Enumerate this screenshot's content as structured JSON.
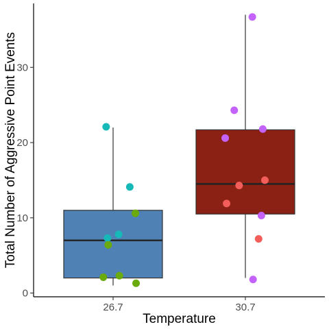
{
  "chart_data": {
    "type": "boxplot",
    "xlabel": "Temperature",
    "ylabel": "Total Number of Aggressive Point Events",
    "ylim": [
      -0.5,
      38.5
    ],
    "yticks": [
      0,
      10,
      20,
      30
    ],
    "categories": [
      "26.7",
      "30.7"
    ],
    "grid": false,
    "legend": "none",
    "boxes": [
      {
        "category": "26.7",
        "min": 1,
        "q1": 2,
        "median": 7,
        "q3": 11,
        "max": 22,
        "fill": "#4f81b4"
      },
      {
        "category": "30.7",
        "min": 2,
        "q1": 10.5,
        "median": 14.5,
        "q3": 21.7,
        "max": 37,
        "fill": "#8b2014"
      }
    ],
    "points": [
      {
        "category": "26.7",
        "offset": -0.1,
        "y": 22.1,
        "color": "#16b8b8"
      },
      {
        "category": "26.7",
        "offset": 0.24,
        "y": 14.1,
        "color": "#16b8b8"
      },
      {
        "category": "26.7",
        "offset": 0.08,
        "y": 7.8,
        "color": "#16b8b8"
      },
      {
        "category": "26.7",
        "offset": -0.08,
        "y": 7.3,
        "color": "#16b8b8"
      },
      {
        "category": "26.7",
        "offset": 0.32,
        "y": 10.6,
        "color": "#6aaa0b"
      },
      {
        "category": "26.7",
        "offset": -0.07,
        "y": 6.4,
        "color": "#6aaa0b"
      },
      {
        "category": "26.7",
        "offset": 0.09,
        "y": 2.3,
        "color": "#6aaa0b"
      },
      {
        "category": "26.7",
        "offset": -0.14,
        "y": 2.1,
        "color": "#6aaa0b"
      },
      {
        "category": "26.7",
        "offset": 0.33,
        "y": 1.3,
        "color": "#6aaa0b"
      },
      {
        "category": "30.7",
        "offset": 0.1,
        "y": 36.7,
        "color": "#c463fb"
      },
      {
        "category": "30.7",
        "offset": -0.16,
        "y": 24.3,
        "color": "#c463fb"
      },
      {
        "category": "30.7",
        "offset": -0.29,
        "y": 20.6,
        "color": "#c463fb"
      },
      {
        "category": "30.7",
        "offset": 0.25,
        "y": 21.8,
        "color": "#c463fb"
      },
      {
        "category": "30.7",
        "offset": 0.23,
        "y": 10.3,
        "color": "#c463fb"
      },
      {
        "category": "30.7",
        "offset": 0.11,
        "y": 1.8,
        "color": "#c463fb"
      },
      {
        "category": "30.7",
        "offset": -0.09,
        "y": 14.3,
        "color": "#f35e5a"
      },
      {
        "category": "30.7",
        "offset": 0.28,
        "y": 15.0,
        "color": "#f35e5a"
      },
      {
        "category": "30.7",
        "offset": -0.27,
        "y": 11.9,
        "color": "#f35e5a"
      },
      {
        "category": "30.7",
        "offset": 0.19,
        "y": 7.2,
        "color": "#f35e5a"
      }
    ]
  }
}
